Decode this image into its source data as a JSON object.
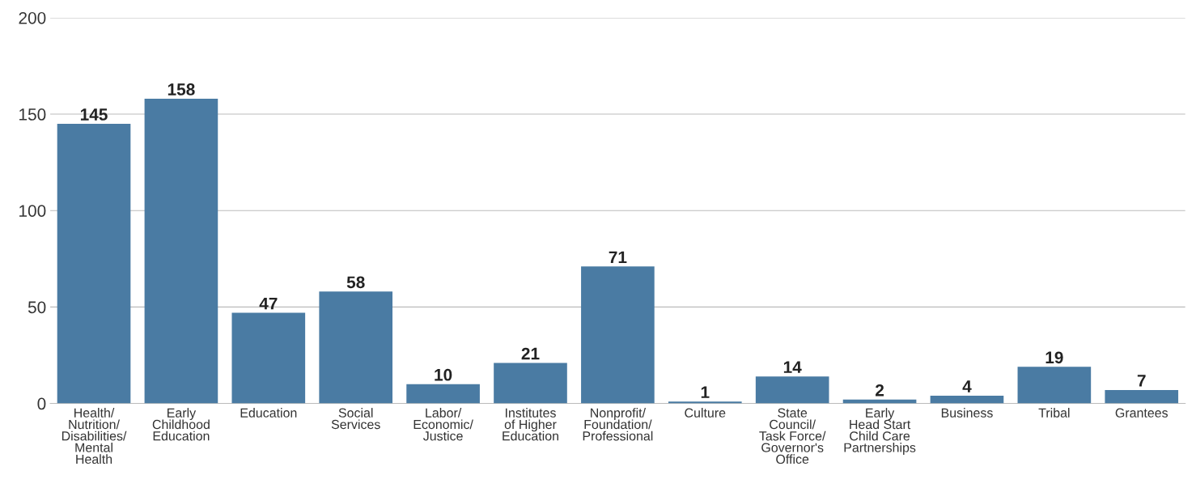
{
  "chart_data": {
    "type": "bar",
    "categories": [
      "Health/\nNutrition/\nDisabilities/\nMental\nHealth",
      "Early\nChildhood\nEducation",
      "Education",
      "Social\nServices",
      "Labor/\nEconomic/\nJustice",
      "Institutes\nof Higher\nEducation",
      "Nonprofit/\nFoundation/\nProfessional",
      "Culture",
      "State\nCouncil/\nTask Force/\nGovernor's\nOffice",
      "Early\nHead Start\nChild Care\nPartnerships",
      "Business",
      "Tribal",
      "Grantees"
    ],
    "values": [
      145,
      158,
      47,
      58,
      10,
      21,
      71,
      1,
      14,
      2,
      4,
      19,
      7
    ],
    "color": "#4a7ba3",
    "ylim": [
      0,
      200
    ],
    "yticks": [
      0,
      50,
      100,
      150,
      200
    ],
    "grid": "y",
    "data_labels": true
  }
}
